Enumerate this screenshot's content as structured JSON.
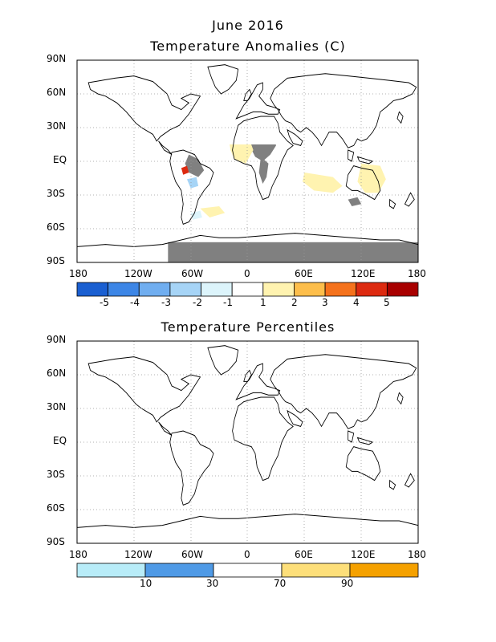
{
  "top": {
    "title_line1": "June 2016",
    "title_line2": "Temperature Anomalies (C)",
    "lat_labels": [
      "90N",
      "60N",
      "30N",
      "EQ",
      "30S",
      "60S",
      "90S"
    ],
    "lon_labels": [
      "180",
      "120W",
      "60W",
      "0",
      "60E",
      "120E",
      "180"
    ],
    "colorbar": {
      "colors": [
        "#1a5fd1",
        "#3d86e6",
        "#70aef0",
        "#a6d4f6",
        "#dcf4fb",
        "#ffffff",
        "#fff3b0",
        "#fdbe4b",
        "#f5721c",
        "#dd2a10",
        "#a80000"
      ],
      "labels": [
        "-5",
        "-4",
        "-3",
        "-2",
        "-1",
        "1",
        "2",
        "3",
        "4",
        "5"
      ]
    }
  },
  "bottom": {
    "title": "Temperature Percentiles",
    "lat_labels": [
      "90N",
      "60N",
      "30N",
      "EQ",
      "30S",
      "60S",
      "90S"
    ],
    "lon_labels": [
      "180",
      "120W",
      "60W",
      "0",
      "60E",
      "120E",
      "180"
    ],
    "colorbar": {
      "colors": [
        "#b8ecf8",
        "#4f9ae6",
        "#ffffff",
        "#fddf7a",
        "#f5a100"
      ],
      "labels": [
        "10",
        "30",
        "70",
        "90"
      ]
    }
  }
}
